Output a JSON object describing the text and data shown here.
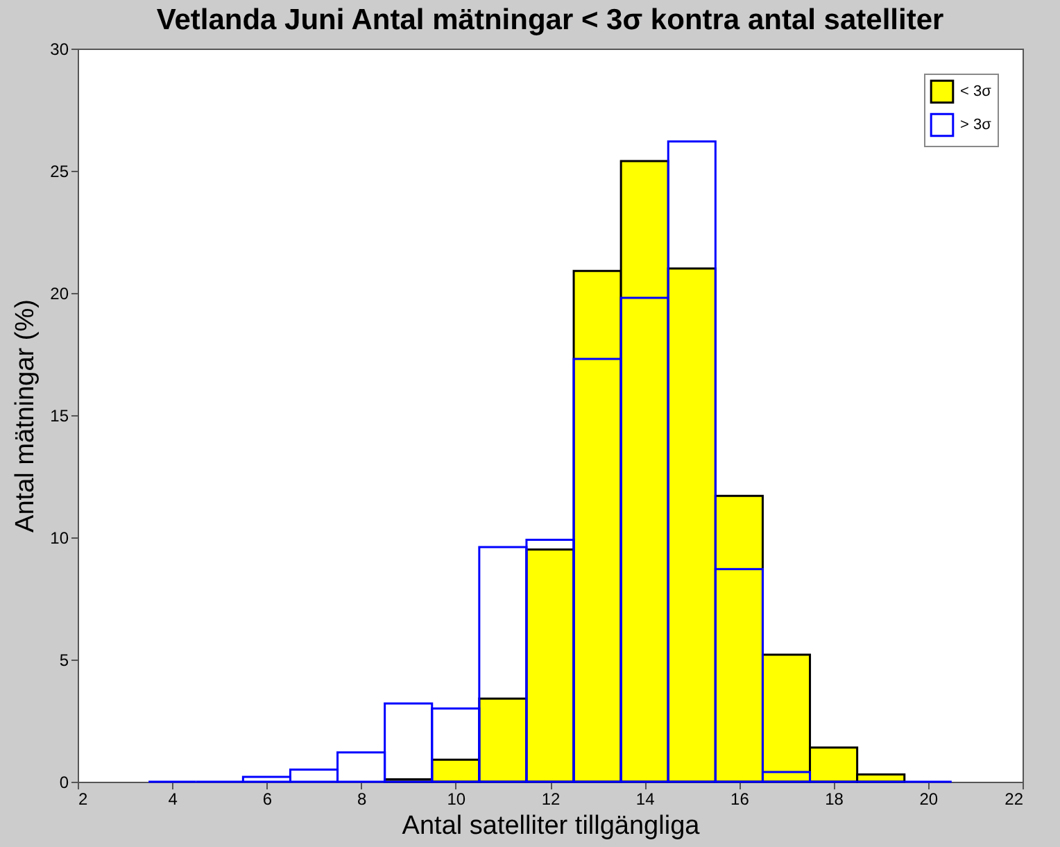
{
  "chart_data": {
    "type": "histogram",
    "title": "Vetlanda Juni Antal mätningar < 3σ kontra antal satelliter",
    "xlabel": "Antal satelliter tillgängliga",
    "ylabel": "Antal mätningar (%)",
    "bins": [
      3.5,
      4.5,
      5.5,
      6.5,
      7.5,
      8.5,
      9.5,
      10.5,
      11.5,
      12.5,
      13.5,
      14.5,
      15.5,
      16.5,
      17.5,
      18.5,
      19.5,
      20.5
    ],
    "series": [
      {
        "name": "< 3σ",
        "color": "#ffff00",
        "values": [
          0,
          0,
          0,
          0,
          0,
          0.1,
          0.9,
          3.4,
          9.5,
          20.9,
          25.4,
          21.0,
          11.7,
          5.2,
          1.4,
          0.3,
          null
        ]
      },
      {
        "name": "> 3σ",
        "color": "#0000ff",
        "values": [
          0,
          0,
          0.2,
          0.5,
          1.2,
          3.2,
          3.0,
          9.6,
          9.9,
          17.3,
          19.8,
          26.2,
          8.7,
          0.4,
          0,
          0,
          0
        ]
      }
    ],
    "xlim": [
      2,
      22
    ],
    "xticks": [
      2,
      4,
      6,
      8,
      10,
      12,
      14,
      16,
      18,
      20,
      22
    ],
    "ylim": [
      0,
      30
    ],
    "yticks": [
      0,
      5,
      10,
      15,
      20,
      25,
      30
    ],
    "legend": "top right",
    "grid": false
  }
}
